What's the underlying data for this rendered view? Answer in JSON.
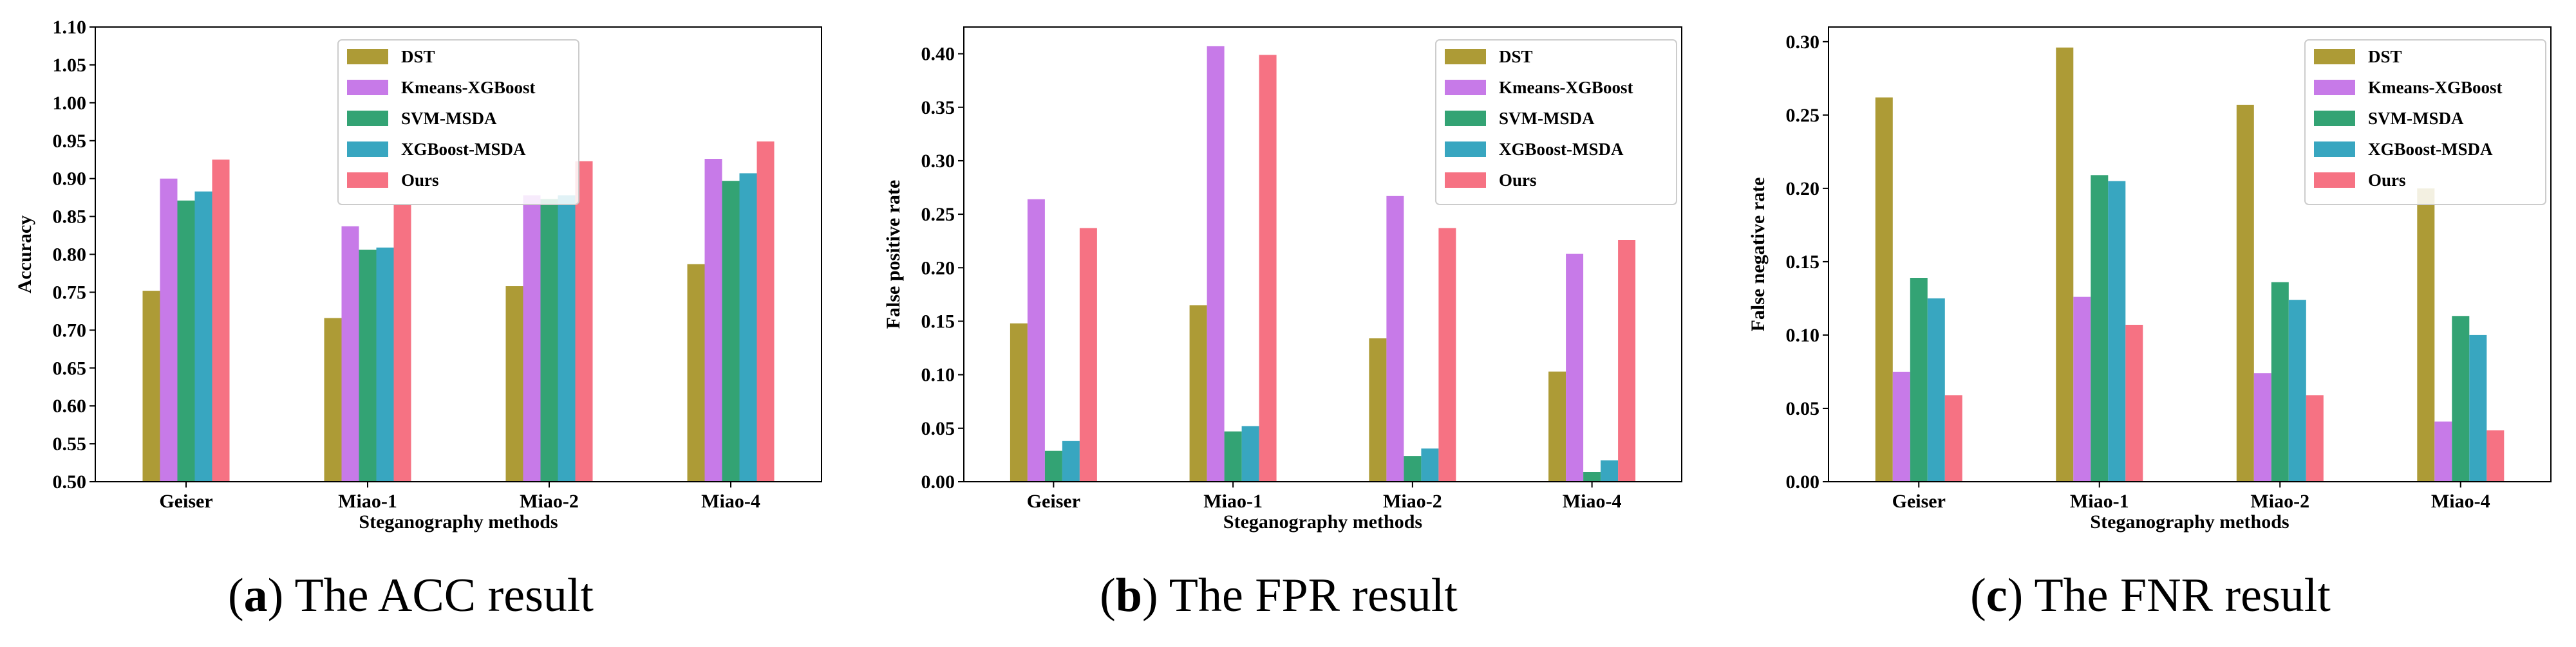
{
  "colors": {
    "DST": "#ad9b36",
    "Kmeans-XGBoost": "#c77ae8",
    "SVM-MSDA": "#33a374",
    "XGBoost-MSDA": "#38a6c0",
    "Ours": "#f67283"
  },
  "chart_data": [
    {
      "type": "bar",
      "caption_letter": "a",
      "caption_text": "The ACC result",
      "title": "",
      "xlabel": "Steganography methods",
      "ylabel": "Accuracy",
      "ylim": [
        0.5,
        1.1
      ],
      "yticks": [
        0.5,
        0.55,
        0.6,
        0.65,
        0.7,
        0.75,
        0.8,
        0.85,
        0.9,
        0.95,
        1.0,
        1.05,
        1.1
      ],
      "ytick_labels": [
        "0.50",
        "0.55",
        "0.60",
        "0.65",
        "0.70",
        "0.75",
        "0.80",
        "0.85",
        "0.90",
        "0.95",
        "1.00",
        "1.05",
        "1.10"
      ],
      "categories": [
        "Geiser",
        "Miao-1",
        "Miao-2",
        "Miao-4"
      ],
      "legend_position": "top-center",
      "series": [
        {
          "name": "DST",
          "values": [
            0.752,
            0.716,
            0.758,
            0.787
          ]
        },
        {
          "name": "Kmeans-XGBoost",
          "values": [
            0.9,
            0.837,
            0.878,
            0.926
          ]
        },
        {
          "name": "SVM-MSDA",
          "values": [
            0.871,
            0.806,
            0.873,
            0.897
          ]
        },
        {
          "name": "XGBoost-MSDA",
          "values": [
            0.883,
            0.809,
            0.878,
            0.907
          ]
        },
        {
          "name": "Ours",
          "values": [
            0.925,
            0.866,
            0.923,
            0.949
          ]
        }
      ]
    },
    {
      "type": "bar",
      "caption_letter": "b",
      "caption_text": "The FPR result",
      "title": "",
      "xlabel": "Steganography methods",
      "ylabel": "False positive rate",
      "ylim": [
        0.0,
        0.425
      ],
      "yticks": [
        0.0,
        0.05,
        0.1,
        0.15,
        0.2,
        0.25,
        0.3,
        0.35,
        0.4
      ],
      "ytick_labels": [
        "0.00",
        "0.05",
        "0.10",
        "0.15",
        "0.20",
        "0.25",
        "0.30",
        "0.35",
        "0.40"
      ],
      "categories": [
        "Geiser",
        "Miao-1",
        "Miao-2",
        "Miao-4"
      ],
      "legend_position": "top-right",
      "series": [
        {
          "name": "DST",
          "values": [
            0.148,
            0.165,
            0.134,
            0.103
          ]
        },
        {
          "name": "Kmeans-XGBoost",
          "values": [
            0.264,
            0.407,
            0.267,
            0.213
          ]
        },
        {
          "name": "SVM-MSDA",
          "values": [
            0.029,
            0.047,
            0.024,
            0.009
          ]
        },
        {
          "name": "XGBoost-MSDA",
          "values": [
            0.038,
            0.052,
            0.031,
            0.02
          ]
        },
        {
          "name": "Ours",
          "values": [
            0.237,
            0.399,
            0.237,
            0.226
          ]
        }
      ]
    },
    {
      "type": "bar",
      "caption_letter": "c",
      "caption_text": "The FNR result",
      "title": "",
      "xlabel": "Steganography methods",
      "ylabel": "False negative rate",
      "ylim": [
        0.0,
        0.31
      ],
      "yticks": [
        0.0,
        0.05,
        0.1,
        0.15,
        0.2,
        0.25,
        0.3
      ],
      "ytick_labels": [
        "0.00",
        "0.05",
        "0.10",
        "0.15",
        "0.20",
        "0.25",
        "0.30"
      ],
      "categories": [
        "Geiser",
        "Miao-1",
        "Miao-2",
        "Miao-4"
      ],
      "legend_position": "top-right",
      "series": [
        {
          "name": "DST",
          "values": [
            0.262,
            0.296,
            0.257,
            0.2
          ]
        },
        {
          "name": "Kmeans-XGBoost",
          "values": [
            0.075,
            0.126,
            0.074,
            0.041
          ]
        },
        {
          "name": "SVM-MSDA",
          "values": [
            0.139,
            0.209,
            0.136,
            0.113
          ]
        },
        {
          "name": "XGBoost-MSDA",
          "values": [
            0.125,
            0.205,
            0.124,
            0.1
          ]
        },
        {
          "name": "Ours",
          "values": [
            0.059,
            0.107,
            0.059,
            0.035
          ]
        }
      ]
    }
  ]
}
